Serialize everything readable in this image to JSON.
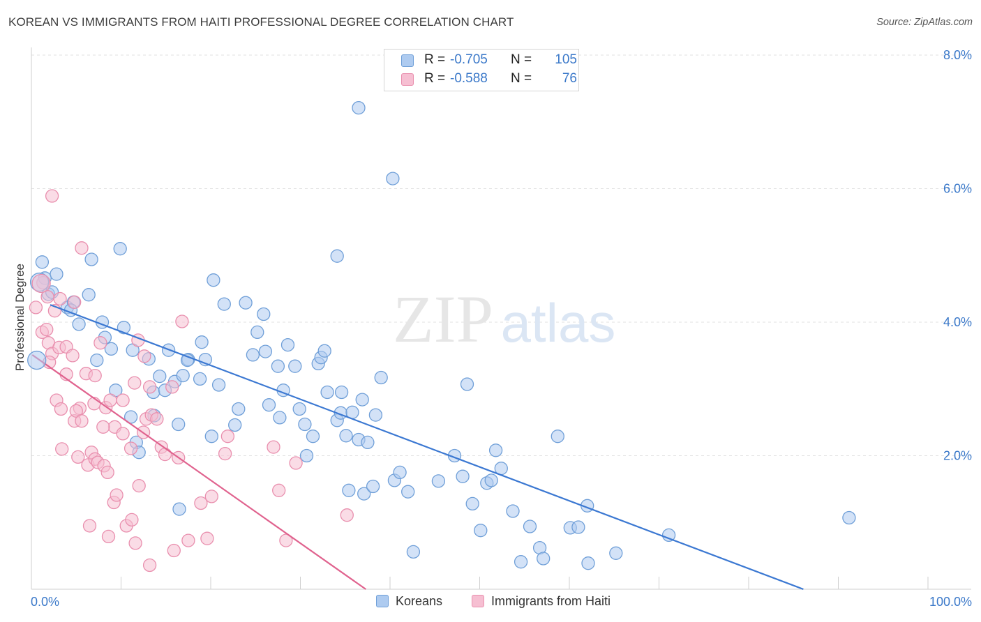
{
  "title": "KOREAN VS IMMIGRANTS FROM HAITI PROFESSIONAL DEGREE CORRELATION CHART",
  "source": "Source: ZipAtlas.com",
  "watermark": {
    "zip": "ZIP",
    "atlas": "atlas"
  },
  "legend": {
    "r_label": "R =",
    "n_label": "N =",
    "series": [
      {
        "name": "Koreans",
        "r": "-0.705",
        "n": "105",
        "fill": "#aecbf0",
        "stroke": "#6f9fd8"
      },
      {
        "name": "Immigrants from Haiti",
        "r": "-0.588",
        "n": "76",
        "fill": "#f6bfd2",
        "stroke": "#e98fae"
      }
    ]
  },
  "chart_data": {
    "type": "scatter",
    "xlabel": "",
    "ylabel": "Professional Degree",
    "x_tick_labels": {
      "left": "0.0%",
      "right": "100.0%"
    },
    "y_tick_labels": [
      "2.0%",
      "4.0%",
      "6.0%",
      "8.0%"
    ],
    "xlim": [
      0,
      100
    ],
    "ylim": [
      0,
      8.0
    ],
    "grid": true,
    "legend_position": "top-center",
    "series": [
      {
        "name": "Koreans",
        "color": "#3b78d2",
        "trend": [
          [
            2.1,
            4.26
          ],
          [
            86.1,
            0.0
          ]
        ],
        "points": [
          [
            36.5,
            7.21
          ],
          [
            40.3,
            6.15
          ],
          [
            1.2,
            4.9
          ],
          [
            2.8,
            4.72
          ],
          [
            6.7,
            4.94
          ],
          [
            9.9,
            5.1
          ],
          [
            1.5,
            4.66
          ],
          [
            1.9,
            4.42
          ],
          [
            2.3,
            4.45
          ],
          [
            6.4,
            4.41
          ],
          [
            4.0,
            4.22
          ],
          [
            4.7,
            4.3
          ],
          [
            4.4,
            4.18
          ],
          [
            5.3,
            3.97
          ],
          [
            7.9,
            4.0
          ],
          [
            10.3,
            3.92
          ],
          [
            8.2,
            3.77
          ],
          [
            8.9,
            3.6
          ],
          [
            11.3,
            3.58
          ],
          [
            13.1,
            3.45
          ],
          [
            15.3,
            3.58
          ],
          [
            17.5,
            3.44
          ],
          [
            19.0,
            3.7
          ],
          [
            19.4,
            3.44
          ],
          [
            7.3,
            3.43
          ],
          [
            20.3,
            4.63
          ],
          [
            20.9,
            3.06
          ],
          [
            21.5,
            4.27
          ],
          [
            22.7,
            2.46
          ],
          [
            23.1,
            2.7
          ],
          [
            23.9,
            4.29
          ],
          [
            24.7,
            3.51
          ],
          [
            25.2,
            3.85
          ],
          [
            25.9,
            4.12
          ],
          [
            26.1,
            3.56
          ],
          [
            26.5,
            2.76
          ],
          [
            27.5,
            3.34
          ],
          [
            27.7,
            2.57
          ],
          [
            28.1,
            2.98
          ],
          [
            28.6,
            3.66
          ],
          [
            29.4,
            3.34
          ],
          [
            29.9,
            2.7
          ],
          [
            30.5,
            2.47
          ],
          [
            30.7,
            2.0
          ],
          [
            31.4,
            2.29
          ],
          [
            32.0,
            3.38
          ],
          [
            32.3,
            3.47
          ],
          [
            32.7,
            3.57
          ],
          [
            33.0,
            2.95
          ],
          [
            34.1,
            2.53
          ],
          [
            34.5,
            2.64
          ],
          [
            34.6,
            2.95
          ],
          [
            35.1,
            2.3
          ],
          [
            35.4,
            1.48
          ],
          [
            35.8,
            2.65
          ],
          [
            34.1,
            4.99
          ],
          [
            36.5,
            2.24
          ],
          [
            36.9,
            2.84
          ],
          [
            37.1,
            1.43
          ],
          [
            37.5,
            2.2
          ],
          [
            38.1,
            1.54
          ],
          [
            38.4,
            2.61
          ],
          [
            39.0,
            3.17
          ],
          [
            40.5,
            1.63
          ],
          [
            41.1,
            1.75
          ],
          [
            42.0,
            1.46
          ],
          [
            42.6,
            0.56
          ],
          [
            45.4,
            1.62
          ],
          [
            47.2,
            2.0
          ],
          [
            48.1,
            1.69
          ],
          [
            48.6,
            3.07
          ],
          [
            49.2,
            1.28
          ],
          [
            50.1,
            0.88
          ],
          [
            50.8,
            1.59
          ],
          [
            51.3,
            1.63
          ],
          [
            51.8,
            2.08
          ],
          [
            52.4,
            1.81
          ],
          [
            53.7,
            1.17
          ],
          [
            54.6,
            0.41
          ],
          [
            55.6,
            0.94
          ],
          [
            56.7,
            0.62
          ],
          [
            57.1,
            0.46
          ],
          [
            58.7,
            2.29
          ],
          [
            60.1,
            0.92
          ],
          [
            61.0,
            0.93
          ],
          [
            62.0,
            1.25
          ],
          [
            62.1,
            0.39
          ],
          [
            65.2,
            0.54
          ],
          [
            71.1,
            0.81
          ],
          [
            91.2,
            1.07
          ],
          [
            9.4,
            2.98
          ],
          [
            11.1,
            2.58
          ],
          [
            11.7,
            2.2
          ],
          [
            12.0,
            2.05
          ],
          [
            13.6,
            2.95
          ],
          [
            14.3,
            3.19
          ],
          [
            14.9,
            2.98
          ],
          [
            16.0,
            3.11
          ],
          [
            16.4,
            2.47
          ],
          [
            16.9,
            3.2
          ],
          [
            17.4,
            3.43
          ],
          [
            18.8,
            3.15
          ],
          [
            20.1,
            2.29
          ],
          [
            16.5,
            1.2
          ],
          [
            13.7,
            2.6
          ]
        ]
      },
      {
        "name": "Immigrants from Haiti",
        "color": "#e0628e",
        "trend": [
          [
            0.1,
            3.51
          ],
          [
            37.3,
            0.0
          ]
        ],
        "points": [
          [
            2.3,
            5.89
          ],
          [
            5.6,
            5.11
          ],
          [
            0.5,
            4.22
          ],
          [
            1.3,
            4.59
          ],
          [
            1.8,
            4.38
          ],
          [
            2.6,
            4.17
          ],
          [
            3.2,
            4.35
          ],
          [
            4.8,
            4.3
          ],
          [
            1.2,
            3.85
          ],
          [
            1.7,
            3.89
          ],
          [
            1.9,
            3.69
          ],
          [
            2.3,
            3.53
          ],
          [
            2.0,
            3.4
          ],
          [
            3.1,
            3.62
          ],
          [
            3.9,
            3.63
          ],
          [
            4.6,
            3.5
          ],
          [
            3.9,
            3.22
          ],
          [
            5.4,
            2.71
          ],
          [
            6.1,
            3.23
          ],
          [
            7.1,
            3.2
          ],
          [
            7.0,
            2.78
          ],
          [
            7.7,
            3.69
          ],
          [
            8.3,
            2.72
          ],
          [
            8.8,
            2.83
          ],
          [
            9.3,
            2.43
          ],
          [
            10.2,
            2.83
          ],
          [
            11.1,
            2.11
          ],
          [
            11.5,
            3.09
          ],
          [
            11.9,
            3.73
          ],
          [
            12.6,
            3.49
          ],
          [
            12.8,
            2.55
          ],
          [
            13.2,
            3.03
          ],
          [
            13.4,
            2.61
          ],
          [
            14.0,
            2.55
          ],
          [
            14.5,
            2.13
          ],
          [
            14.9,
            2.02
          ],
          [
            15.7,
            3.03
          ],
          [
            16.4,
            1.97
          ],
          [
            16.8,
            4.01
          ],
          [
            2.8,
            2.83
          ],
          [
            3.3,
            2.7
          ],
          [
            3.4,
            2.1
          ],
          [
            4.8,
            2.52
          ],
          [
            5.0,
            2.67
          ],
          [
            5.2,
            1.98
          ],
          [
            5.6,
            2.52
          ],
          [
            6.3,
            1.86
          ],
          [
            6.7,
            2.05
          ],
          [
            7.1,
            1.95
          ],
          [
            7.4,
            1.9
          ],
          [
            8.1,
            1.85
          ],
          [
            8.5,
            1.75
          ],
          [
            8.6,
            0.79
          ],
          [
            9.2,
            1.3
          ],
          [
            9.5,
            1.41
          ],
          [
            10.2,
            2.33
          ],
          [
            10.6,
            0.95
          ],
          [
            11.2,
            1.04
          ],
          [
            11.6,
            0.69
          ],
          [
            12.0,
            1.55
          ],
          [
            12.5,
            2.35
          ],
          [
            13.2,
            0.36
          ],
          [
            15.9,
            0.58
          ],
          [
            17.5,
            0.73
          ],
          [
            18.9,
            1.29
          ],
          [
            19.6,
            0.76
          ],
          [
            20.1,
            1.39
          ],
          [
            21.9,
            2.29
          ],
          [
            21.6,
            2.03
          ],
          [
            27.0,
            2.13
          ],
          [
            27.6,
            1.48
          ],
          [
            28.4,
            0.73
          ],
          [
            29.5,
            1.89
          ],
          [
            35.2,
            1.11
          ],
          [
            6.5,
            0.95
          ],
          [
            8.0,
            2.43
          ]
        ]
      }
    ]
  }
}
